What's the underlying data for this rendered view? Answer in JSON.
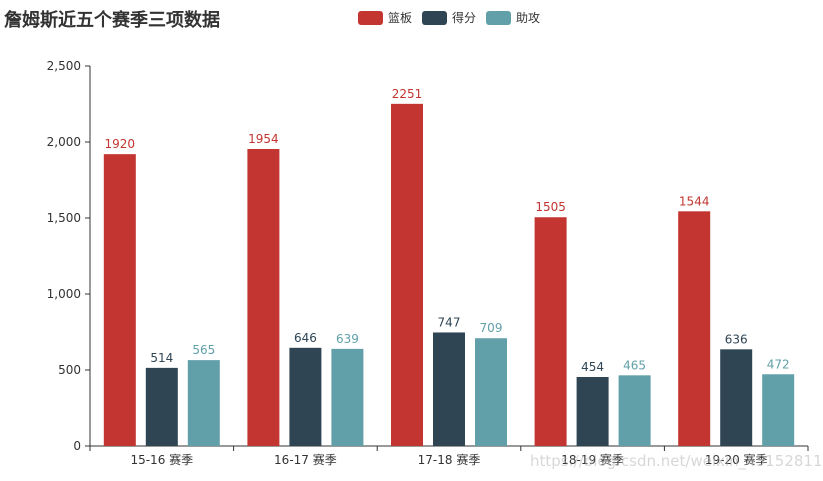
{
  "chart_data": {
    "type": "bar",
    "title": "詹姆斯近五个赛季三项数据",
    "categories": [
      "15-16 赛季",
      "16-17 赛季",
      "17-18 赛季",
      "18-19 赛季",
      "19-20 赛季"
    ],
    "series": [
      {
        "name": "篮板",
        "color": "#c23531",
        "values": [
          1920,
          1954,
          2251,
          1505,
          1544
        ]
      },
      {
        "name": "得分",
        "color": "#2f4554",
        "values": [
          514,
          646,
          747,
          454,
          636
        ]
      },
      {
        "name": "助攻",
        "color": "#61a0a8",
        "values": [
          565,
          639,
          709,
          465,
          472
        ]
      }
    ],
    "ylim": [
      0,
      2500
    ],
    "yticks": [
      0,
      500,
      1000,
      1500,
      2000,
      2500
    ],
    "ytick_labels": [
      "0",
      "500",
      "1,000",
      "1,500",
      "2,000",
      "2,500"
    ],
    "grid": false,
    "legend_position": "top-center",
    "watermark": "https://blog.csdn.net/weixin_45152811"
  }
}
